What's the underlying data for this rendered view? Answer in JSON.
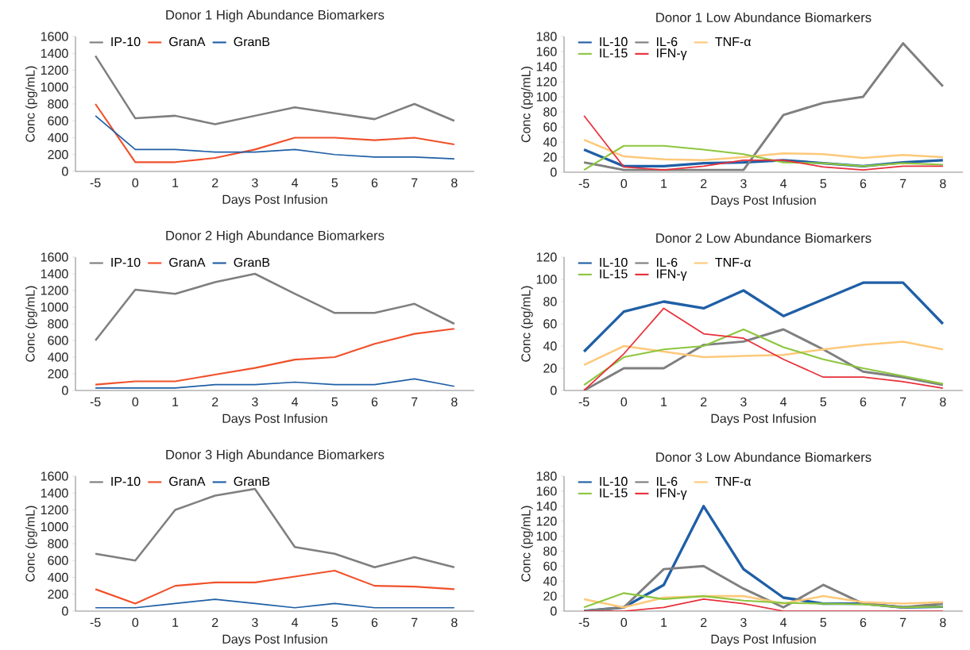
{
  "chart_data": [
    {
      "type": "line",
      "title": "Donor 1 High Abundance Biomarkers",
      "xlabel": "Days Post Infusion",
      "ylabel": "Conc (pg/mL)",
      "categories": [
        "-5",
        "0",
        "1",
        "2",
        "3",
        "4",
        "5",
        "6",
        "7",
        "8"
      ],
      "ylim": [
        0,
        1600
      ],
      "yticks": [
        0,
        200,
        400,
        600,
        800,
        1000,
        1200,
        1400,
        1600
      ],
      "legend": "top left",
      "marker": "none",
      "series": [
        {
          "name": "IP-10",
          "color": "#7f7f7f",
          "values": [
            1370,
            630,
            660,
            560,
            660,
            760,
            690,
            620,
            800,
            600
          ]
        },
        {
          "name": "GranA",
          "color": "#f0512b",
          "values": [
            800,
            110,
            110,
            160,
            260,
            400,
            400,
            370,
            400,
            320
          ]
        },
        {
          "name": "GranB",
          "color": "#1f5fa6",
          "values": [
            660,
            260,
            260,
            230,
            230,
            260,
            200,
            170,
            170,
            150
          ]
        }
      ]
    },
    {
      "type": "line",
      "title": "Donor 1 Low Abundance Biomarkers",
      "xlabel": "Days Post Infusion",
      "ylabel": "Conc (pg/mL)",
      "categories": [
        "-5",
        "0",
        "1",
        "2",
        "3",
        "4",
        "5",
        "6",
        "7",
        "8"
      ],
      "ylim": [
        0,
        180
      ],
      "yticks": [
        0,
        20,
        40,
        60,
        80,
        100,
        120,
        140,
        160,
        180
      ],
      "legend": "top left",
      "marker": "none",
      "series": [
        {
          "name": "IL-10",
          "color": "#1f5fa6",
          "values": [
            30,
            8,
            8,
            12,
            13,
            16,
            12,
            8,
            13,
            16
          ]
        },
        {
          "name": "IL-6",
          "color": "#7f7f7f",
          "values": [
            13,
            3,
            3,
            3,
            3,
            76,
            92,
            100,
            171,
            114
          ]
        },
        {
          "name": "TNF-α",
          "color": "#fdc97a",
          "values": [
            43,
            21,
            17,
            16,
            20,
            25,
            24,
            19,
            23,
            20
          ]
        },
        {
          "name": "IL-15",
          "color": "#8dc63f",
          "values": [
            3,
            35,
            35,
            30,
            24,
            13,
            12,
            8,
            12,
            10
          ]
        },
        {
          "name": "IFN-γ",
          "color": "#e8303a",
          "values": [
            75,
            7,
            3,
            8,
            16,
            16,
            7,
            3,
            8,
            8
          ]
        }
      ]
    },
    {
      "type": "line",
      "title": "Donor 2 High Abundance Biomarkers",
      "xlabel": "Days Post Infusion",
      "ylabel": "Conc (pg/mL)",
      "categories": [
        "-5",
        "0",
        "1",
        "2",
        "3",
        "4",
        "5",
        "6",
        "7",
        "8"
      ],
      "ylim": [
        0,
        1600
      ],
      "yticks": [
        0,
        200,
        400,
        600,
        800,
        1000,
        1200,
        1400,
        1600
      ],
      "legend": "top left",
      "marker": "none",
      "series": [
        {
          "name": "IP-10",
          "color": "#7f7f7f",
          "values": [
            600,
            1210,
            1160,
            1300,
            1400,
            1160,
            930,
            930,
            1040,
            800
          ]
        },
        {
          "name": "GranA",
          "color": "#f0512b",
          "values": [
            70,
            110,
            110,
            190,
            270,
            370,
            400,
            560,
            680,
            740
          ]
        },
        {
          "name": "GranB",
          "color": "#1f5fa6",
          "values": [
            30,
            30,
            30,
            70,
            70,
            100,
            70,
            70,
            140,
            50
          ]
        }
      ]
    },
    {
      "type": "line",
      "title": "Donor 2 Low Abundance Biomarkers",
      "xlabel": "Days Post Infusion",
      "ylabel": "Conc (pg/mL)",
      "categories": [
        "-5",
        "0",
        "1",
        "2",
        "3",
        "4",
        "5",
        "6",
        "7",
        "8"
      ],
      "ylim": [
        0,
        120
      ],
      "yticks": [
        0,
        20,
        40,
        60,
        80,
        100,
        120
      ],
      "legend": "top left",
      "marker": "none",
      "series": [
        {
          "name": "IL-10",
          "color": "#1f5fa6",
          "values": [
            35,
            71,
            80,
            74,
            90,
            67,
            82,
            97,
            97,
            60
          ]
        },
        {
          "name": "IL-6",
          "color": "#7f7f7f",
          "values": [
            0,
            20,
            20,
            41,
            44,
            55,
            37,
            17,
            12,
            5
          ]
        },
        {
          "name": "TNF-α",
          "color": "#fdc97a",
          "values": [
            23,
            40,
            35,
            30,
            31,
            32,
            37,
            41,
            44,
            37
          ]
        },
        {
          "name": "IL-15",
          "color": "#8dc63f",
          "values": [
            5,
            30,
            37,
            40,
            55,
            39,
            28,
            20,
            13,
            6
          ]
        },
        {
          "name": "IFN-γ",
          "color": "#e8303a",
          "values": [
            0,
            33,
            74,
            51,
            47,
            28,
            12,
            12,
            8,
            2
          ]
        }
      ]
    },
    {
      "type": "line",
      "title": "Donor 3 High Abundance Biomarkers",
      "xlabel": "Days Post Infusion",
      "ylabel": "Conc (pg/mL)",
      "categories": [
        "-5",
        "0",
        "1",
        "2",
        "3",
        "4",
        "5",
        "6",
        "7",
        "8"
      ],
      "ylim": [
        0,
        1600
      ],
      "yticks": [
        0,
        200,
        400,
        600,
        800,
        1000,
        1200,
        1400,
        1600
      ],
      "legend": "top left",
      "marker": "none",
      "series": [
        {
          "name": "IP-10",
          "color": "#7f7f7f",
          "values": [
            680,
            600,
            1200,
            1370,
            1450,
            760,
            680,
            520,
            640,
            520
          ]
        },
        {
          "name": "GranA",
          "color": "#f0512b",
          "values": [
            260,
            90,
            300,
            340,
            340,
            410,
            480,
            300,
            290,
            260
          ]
        },
        {
          "name": "GranB",
          "color": "#1f5fa6",
          "values": [
            40,
            40,
            90,
            140,
            90,
            40,
            90,
            40,
            40,
            40
          ]
        }
      ]
    },
    {
      "type": "line",
      "title": "Donor 3 Low Abundance Biomarkers",
      "xlabel": "Days Post Infusion",
      "ylabel": "Conc (pg/mL)",
      "categories": [
        "-5",
        "0",
        "1",
        "2",
        "3",
        "4",
        "5",
        "6",
        "7",
        "8"
      ],
      "ylim": [
        0,
        180
      ],
      "yticks": [
        0,
        20,
        40,
        60,
        80,
        100,
        120,
        140,
        160,
        180
      ],
      "legend": "top left",
      "marker": "none",
      "series": [
        {
          "name": "IL-10",
          "color": "#1f5fa6",
          "values": [
            0,
            5,
            35,
            140,
            56,
            18,
            10,
            10,
            5,
            6
          ]
        },
        {
          "name": "IL-6",
          "color": "#7f7f7f",
          "values": [
            0,
            5,
            56,
            60,
            30,
            5,
            35,
            10,
            5,
            10
          ]
        },
        {
          "name": "TNF-α",
          "color": "#fdc97a",
          "values": [
            16,
            5,
            18,
            20,
            20,
            10,
            20,
            12,
            10,
            12
          ]
        },
        {
          "name": "IL-15",
          "color": "#8dc63f",
          "values": [
            5,
            24,
            16,
            20,
            14,
            11,
            10,
            9,
            5,
            6
          ]
        },
        {
          "name": "IFN-γ",
          "color": "#e8303a",
          "values": [
            0,
            0,
            5,
            16,
            10,
            0,
            0,
            0,
            0,
            0
          ]
        }
      ]
    }
  ]
}
